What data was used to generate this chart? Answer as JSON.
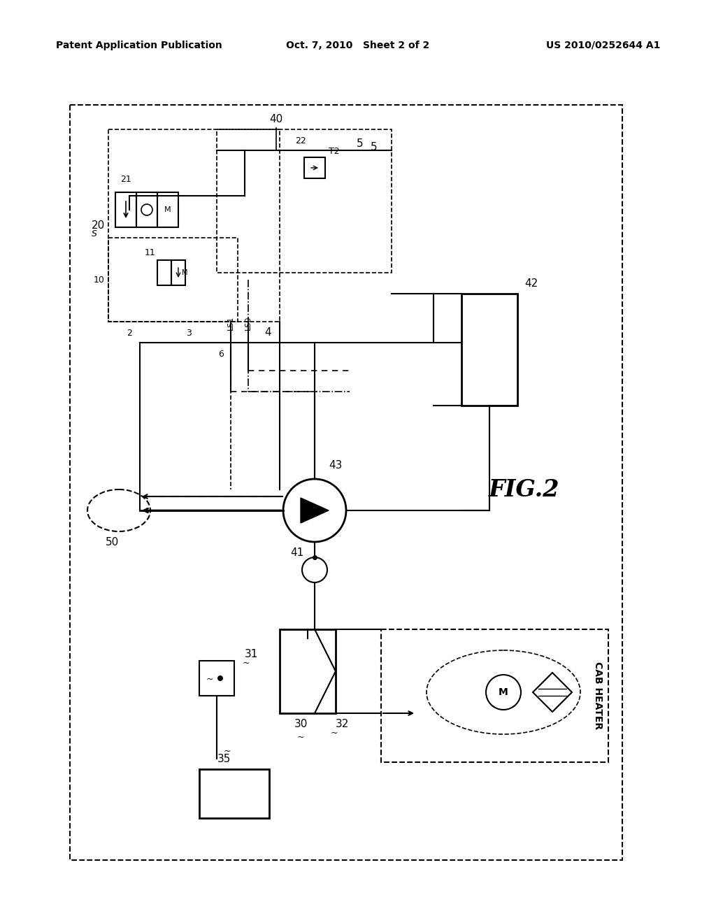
{
  "title_left": "Patent Application Publication",
  "title_center": "Oct. 7, 2010   Sheet 2 of 2",
  "title_right": "US 2010/0252644 A1",
  "fig_label": "FIG.2",
  "bg_color": "#ffffff",
  "line_color": "#000000",
  "dashed_color": "#555555"
}
